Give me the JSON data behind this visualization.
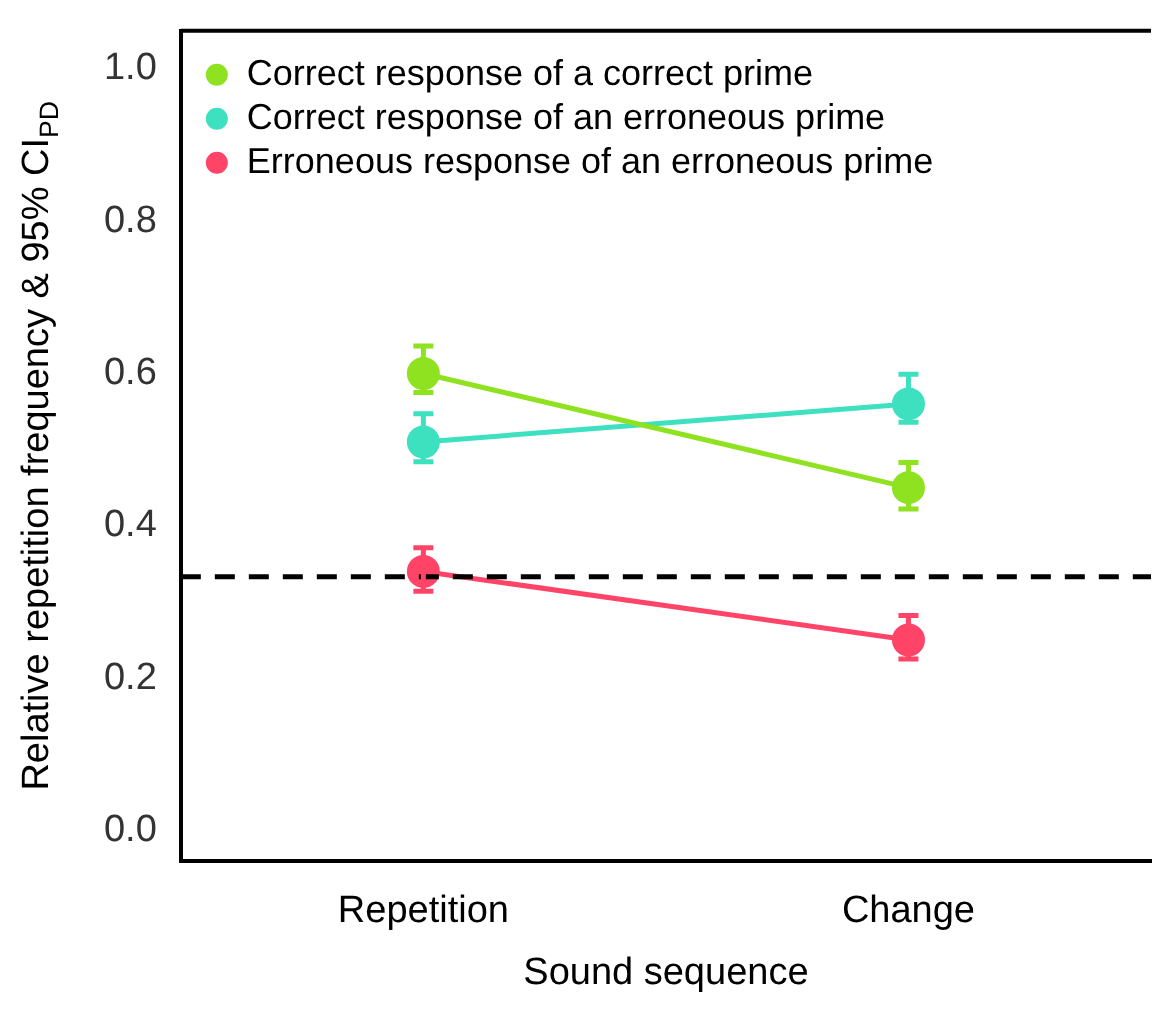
{
  "chart_data": {
    "type": "line",
    "xlabel": "Sound sequence",
    "ylabel": "Relative repetition frequency & 95% CI$_{PD}$",
    "categories": [
      "Repetition",
      "Change"
    ],
    "series": [
      {
        "name": "Correct response of a correct prime",
        "color": "#8ee21f",
        "values": [
          0.6,
          0.45
        ],
        "errors": [
          [
            0.575,
            0.636
          ],
          [
            0.422,
            0.483
          ]
        ]
      },
      {
        "name": "Correct response of an erroneous prime",
        "color": "#3de0bf",
        "values": [
          0.51,
          0.56
        ],
        "errors": [
          [
            0.484,
            0.547
          ],
          [
            0.536,
            0.599
          ]
        ]
      },
      {
        "name": "Erroneous response of an erroneous prime",
        "color": "#ff4467",
        "values": [
          0.34,
          0.25
        ],
        "errors": [
          [
            0.314,
            0.371
          ],
          [
            0.225,
            0.282
          ]
        ]
      }
    ],
    "ylim": [
      -0.04,
      1.05
    ],
    "yticks": [
      {
        "value": 0,
        "label": "0.0"
      },
      0.2,
      0.4,
      0.6,
      0.8,
      {
        "value": 1,
        "label": "1.0"
      }
    ],
    "ref_lines": [
      {
        "axis": "y",
        "value": 0.333,
        "color": "#000000",
        "line_style": "dashed"
      }
    ],
    "marker": "circle",
    "legend": "top left",
    "grid": false
  }
}
